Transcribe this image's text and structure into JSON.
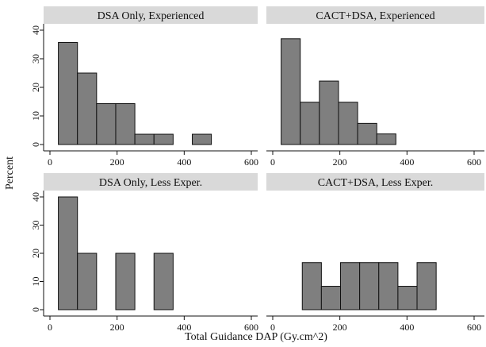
{
  "chart_data": {
    "type": "bar",
    "xlabel": "Total Guidance DAP (Gy.cm^2)",
    "ylabel": "Percent",
    "xlim": [
      0,
      600
    ],
    "ylim": [
      0,
      40
    ],
    "x_ticks": [
      "0",
      "200",
      "400",
      "600"
    ],
    "y_ticks": [
      "0",
      "10",
      "20",
      "30",
      "40"
    ],
    "bin_width": 57,
    "panels": [
      {
        "title": "DSA Only, Experienced",
        "bins": [
          {
            "start": 25,
            "value": 35.7
          },
          {
            "start": 82,
            "value": 25
          },
          {
            "start": 139,
            "value": 14.3
          },
          {
            "start": 196,
            "value": 14.3
          },
          {
            "start": 253,
            "value": 3.6
          },
          {
            "start": 310,
            "value": 3.6
          },
          {
            "start": 424,
            "value": 3.6
          }
        ]
      },
      {
        "title": "CACT+DSA, Experienced",
        "bins": [
          {
            "start": 25,
            "value": 37
          },
          {
            "start": 82,
            "value": 14.8
          },
          {
            "start": 139,
            "value": 22.2
          },
          {
            "start": 196,
            "value": 14.8
          },
          {
            "start": 253,
            "value": 7.4
          },
          {
            "start": 310,
            "value": 3.7
          }
        ]
      },
      {
        "title": "DSA Only, Less Exper.",
        "bins": [
          {
            "start": 25,
            "value": 40
          },
          {
            "start": 82,
            "value": 20
          },
          {
            "start": 196,
            "value": 20
          },
          {
            "start": 310,
            "value": 20
          }
        ]
      },
      {
        "title": "CACT+DSA, Less Exper.",
        "bins": [
          {
            "start": 88,
            "value": 16.7
          },
          {
            "start": 145,
            "value": 8.3
          },
          {
            "start": 202,
            "value": 16.7
          },
          {
            "start": 259,
            "value": 16.7
          },
          {
            "start": 316,
            "value": 16.7
          },
          {
            "start": 373,
            "value": 8.3
          },
          {
            "start": 430,
            "value": 16.7
          }
        ]
      }
    ]
  }
}
